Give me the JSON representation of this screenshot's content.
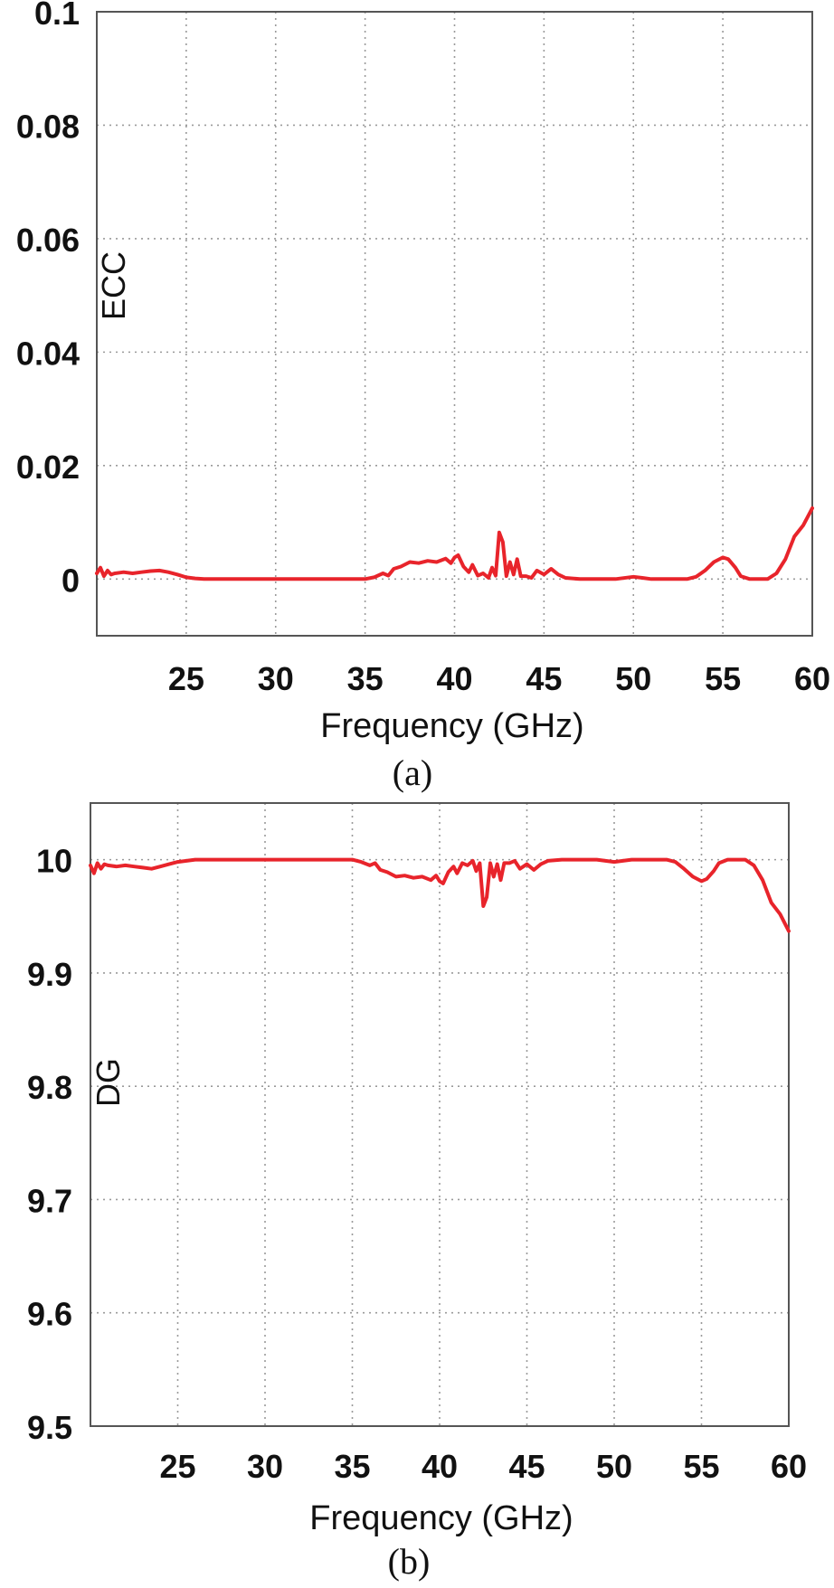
{
  "chart_data": [
    {
      "type": "line",
      "panel_label": "(a)",
      "xlabel": "Frequency (GHz)",
      "ylabel": "ECC",
      "xlim": [
        20,
        60
      ],
      "ylim": [
        -0.01,
        0.1
      ],
      "x_ticks": [
        25,
        30,
        35,
        40,
        45,
        50,
        55,
        60
      ],
      "y_ticks": [
        0,
        0.02,
        0.04,
        0.06,
        0.08,
        0.1
      ],
      "y_tick_labels": [
        "0",
        "0.02",
        "0.04",
        "0.06",
        "0.08",
        "0.1"
      ],
      "grid": true,
      "color": "#e8242b",
      "series": [
        {
          "x": [
            20,
            20.2,
            20.4,
            20.6,
            20.8,
            21,
            21.5,
            22,
            22.5,
            23,
            23.5,
            24,
            24.5,
            25,
            25.5,
            26,
            27,
            28,
            30,
            32,
            34,
            35,
            35.5,
            36,
            36.3,
            36.6,
            37,
            37.5,
            38,
            38.5,
            39,
            39.5,
            39.8,
            40,
            40.2,
            40.5,
            40.8,
            41,
            41.3,
            41.6,
            41.9,
            42.1,
            42.3,
            42.5,
            42.7,
            42.9,
            43.1,
            43.3,
            43.5,
            43.7,
            44,
            44.3,
            44.6,
            45,
            45.4,
            45.8,
            46.2,
            47,
            48,
            49,
            50,
            50.5,
            51,
            52,
            53,
            53.5,
            54,
            54.5,
            55,
            55.3,
            55.7,
            56,
            56.5,
            57,
            57.5,
            58,
            58.5,
            59,
            59.5,
            60
          ],
          "y": [
            0.001,
            0.002,
            0.0005,
            0.0015,
            0.0008,
            0.001,
            0.0012,
            0.001,
            0.0012,
            0.0014,
            0.0015,
            0.0012,
            0.0008,
            0.0003,
            0.0001,
            0,
            0,
            0,
            0,
            0,
            0,
            0,
            0.0003,
            0.001,
            0.0006,
            0.0018,
            0.0022,
            0.003,
            0.0028,
            0.0032,
            0.003,
            0.0036,
            0.0028,
            0.0038,
            0.0042,
            0.0022,
            0.0012,
            0.0025,
            0.0006,
            0.001,
            0.0002,
            0.002,
            0.0006,
            0.0082,
            0.0065,
            0.0005,
            0.003,
            0.0008,
            0.0035,
            0.0005,
            0.0005,
            0.0002,
            0.0015,
            0.0008,
            0.0018,
            0.0008,
            0.0002,
            0,
            0,
            0,
            0.0004,
            0.0002,
            0,
            0,
            0,
            0.0004,
            0.0015,
            0.003,
            0.0038,
            0.0035,
            0.002,
            0.0005,
            0,
            0,
            0,
            0.001,
            0.0035,
            0.0075,
            0.0095,
            0.0125
          ]
        }
      ]
    },
    {
      "type": "line",
      "panel_label": "(b)",
      "xlabel": "Frequency (GHz)",
      "ylabel": "DG",
      "xlim": [
        20,
        60
      ],
      "ylim": [
        9.5,
        10.05
      ],
      "x_ticks": [
        25,
        30,
        35,
        40,
        45,
        50,
        55,
        60
      ],
      "y_ticks": [
        9.5,
        9.6,
        9.7,
        9.8,
        9.9,
        10
      ],
      "y_tick_labels": [
        "9.5",
        "9.6",
        "9.7",
        "9.8",
        "9.9",
        "10"
      ],
      "grid": true,
      "color": "#e8242b",
      "series": [
        {
          "x": [
            20,
            20.2,
            20.4,
            20.6,
            20.8,
            21,
            21.5,
            22,
            22.5,
            23,
            23.5,
            24,
            24.5,
            25,
            25.5,
            26,
            27,
            28,
            30,
            32,
            34,
            35,
            35.5,
            36,
            36.3,
            36.6,
            37,
            37.5,
            38,
            38.5,
            39,
            39.5,
            39.8,
            40,
            40.2,
            40.5,
            40.8,
            41,
            41.3,
            41.6,
            41.9,
            42.1,
            42.3,
            42.5,
            42.7,
            42.9,
            43.1,
            43.3,
            43.5,
            43.7,
            44,
            44.3,
            44.6,
            45,
            45.4,
            45.8,
            46.2,
            47,
            48,
            49,
            50,
            50.5,
            51,
            52,
            53,
            53.5,
            54,
            54.5,
            55,
            55.3,
            55.7,
            56,
            56.5,
            57,
            57.5,
            58,
            58.5,
            59,
            59.5,
            60
          ],
          "y": [
            9.995,
            9.988,
            9.997,
            9.992,
            9.996,
            9.995,
            9.994,
            9.995,
            9.994,
            9.993,
            9.992,
            9.994,
            9.996,
            9.998,
            9.999,
            10,
            10,
            10,
            10,
            10,
            10,
            10,
            9.998,
            9.995,
            9.997,
            9.991,
            9.989,
            9.985,
            9.986,
            9.984,
            9.985,
            9.982,
            9.986,
            9.981,
            9.979,
            9.989,
            9.994,
            9.988,
            9.997,
            9.995,
            9.999,
            9.99,
            9.997,
            9.959,
            9.967,
            9.997,
            9.985,
            9.996,
            9.982,
            9.997,
            9.997,
            9.999,
            9.992,
            9.996,
            9.991,
            9.996,
            9.999,
            10,
            10,
            10,
            9.998,
            9.999,
            10,
            10,
            10,
            9.998,
            9.992,
            9.985,
            9.981,
            9.983,
            9.99,
            9.997,
            10,
            10,
            10,
            9.995,
            9.982,
            9.962,
            9.952,
            9.937
          ]
        }
      ]
    }
  ]
}
